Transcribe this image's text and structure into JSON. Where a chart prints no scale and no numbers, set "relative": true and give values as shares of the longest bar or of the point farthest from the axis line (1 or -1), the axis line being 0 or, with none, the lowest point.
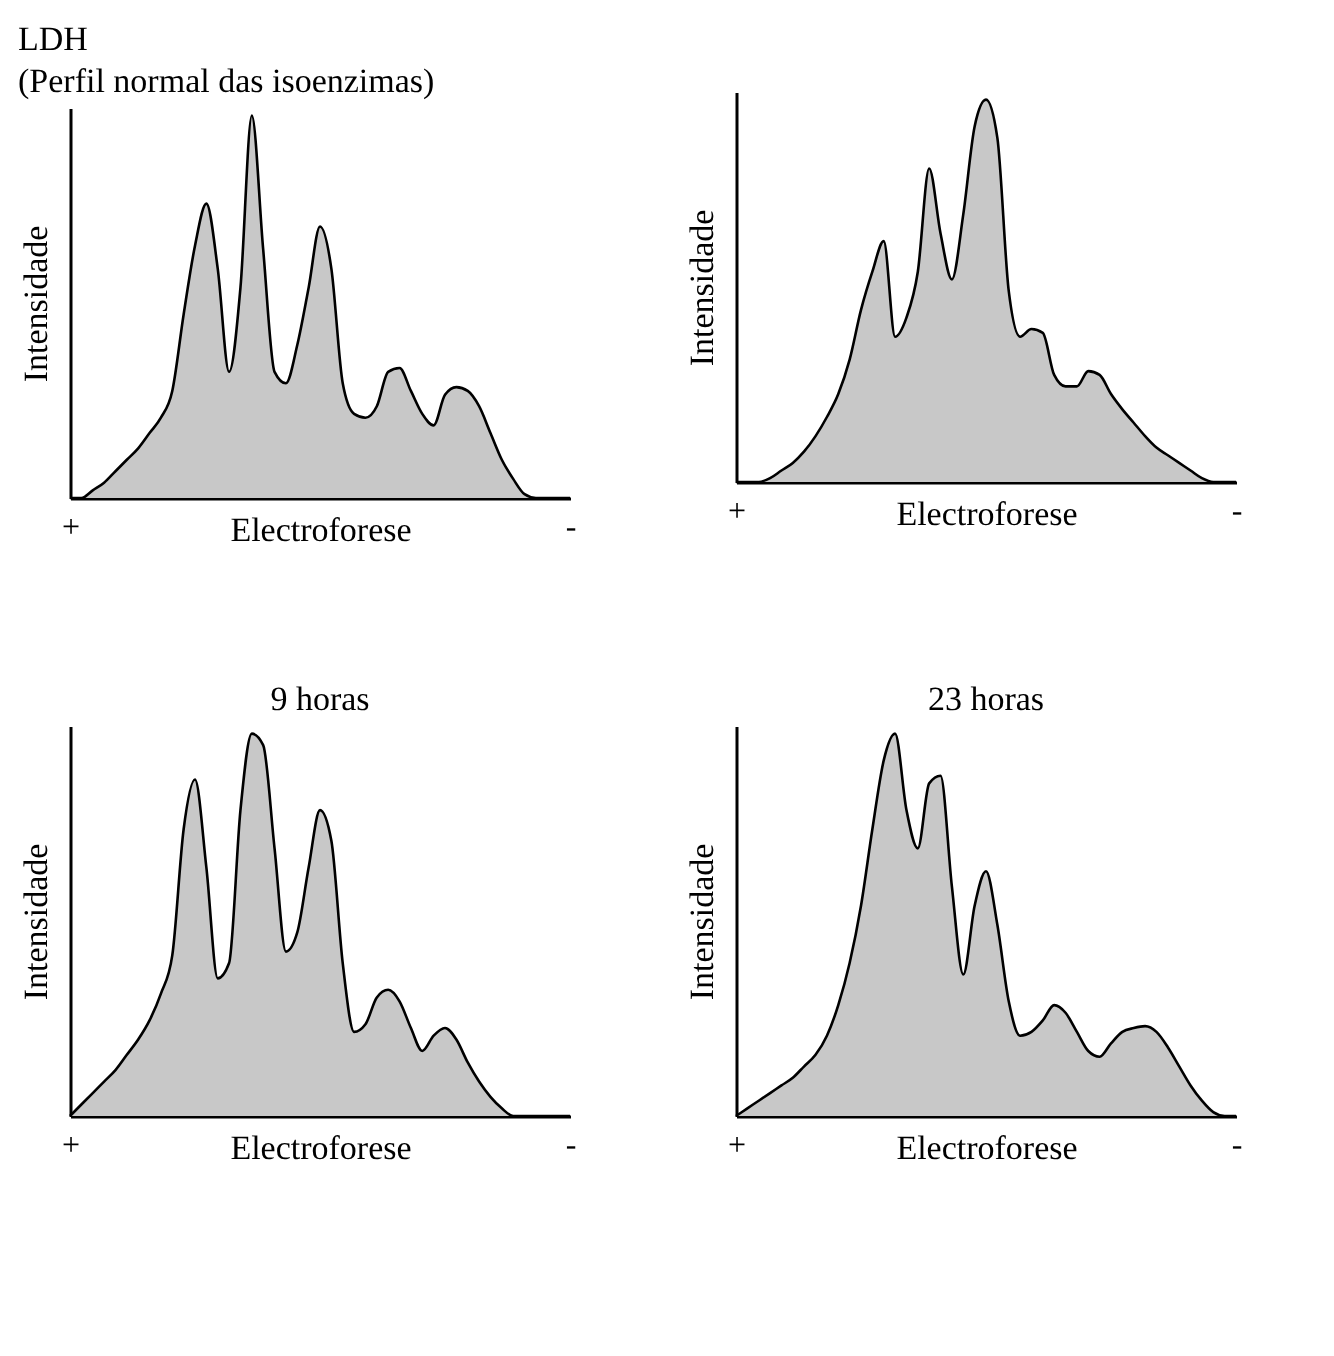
{
  "chart_data": [
    {
      "type": "area",
      "title": "LDH",
      "subtitle": "(Perfil normal das isoenzimas)",
      "xlabel": "Electroforese",
      "ylabel": "Intensidade",
      "relative": true,
      "categories": [
        "+",
        null,
        null,
        null,
        null,
        null,
        null,
        null,
        null,
        null,
        null,
        null,
        null,
        null,
        null,
        null,
        null,
        null,
        null,
        null,
        null,
        null,
        null,
        null,
        null,
        null,
        null,
        null,
        null,
        null,
        null,
        null,
        null,
        null,
        null,
        null,
        null,
        null,
        null,
        null,
        null,
        null,
        null,
        null,
        "-"
      ],
      "series": [
        {
          "color": "#c8c8c8",
          "values": [
            0,
            0,
            0.02,
            0.04,
            0.07,
            0.1,
            0.13,
            0.17,
            0.21,
            0.28,
            0.48,
            0.66,
            0.77,
            0.6,
            0.33,
            0.55,
            1,
            0.65,
            0.33,
            0.3,
            0.4,
            0.55,
            0.71,
            0.6,
            0.3,
            0.22,
            0.21,
            0.24,
            0.33,
            0.34,
            0.28,
            0.22,
            0.19,
            0.27,
            0.29,
            0.28,
            0.24,
            0.17,
            0.1,
            0.05,
            0.01,
            0,
            0,
            0,
            0
          ]
        }
      ]
    },
    {
      "type": "area",
      "xlabel": "Electroforese",
      "ylabel": "Intensidade",
      "relative": true,
      "categories": [
        "+",
        null,
        null,
        null,
        null,
        null,
        null,
        null,
        null,
        null,
        null,
        null,
        null,
        null,
        null,
        null,
        null,
        null,
        null,
        null,
        null,
        null,
        null,
        null,
        null,
        null,
        null,
        null,
        null,
        null,
        null,
        null,
        null,
        null,
        null,
        null,
        null,
        null,
        null,
        null,
        null,
        null,
        null,
        null,
        "-"
      ],
      "series": [
        {
          "color": "#c8c8c8",
          "values": [
            0,
            0,
            0,
            0.01,
            0.03,
            0.05,
            0.08,
            0.12,
            0.17,
            0.23,
            0.32,
            0.45,
            0.55,
            0.63,
            0.38,
            0.43,
            0.55,
            0.82,
            0.65,
            0.53,
            0.7,
            0.93,
            1,
            0.9,
            0.5,
            0.38,
            0.4,
            0.39,
            0.28,
            0.25,
            0.25,
            0.29,
            0.28,
            0.23,
            0.19,
            0.155,
            0.12,
            0.09,
            0.07,
            0.05,
            0.03,
            0.01,
            0,
            0,
            0
          ]
        }
      ]
    },
    {
      "type": "area",
      "title": "9 horas",
      "xlabel": "Electroforese",
      "ylabel": "Intensidade",
      "relative": true,
      "categories": [
        "+",
        null,
        null,
        null,
        null,
        null,
        null,
        null,
        null,
        null,
        null,
        null,
        null,
        null,
        null,
        null,
        null,
        null,
        null,
        null,
        null,
        null,
        null,
        null,
        null,
        null,
        null,
        null,
        null,
        null,
        null,
        null,
        null,
        null,
        null,
        null,
        null,
        null,
        null,
        null,
        null,
        null,
        null,
        null,
        "-"
      ],
      "series": [
        {
          "color": "#c8c8c8",
          "values": [
            0,
            0.03,
            0.06,
            0.09,
            0.12,
            0.16,
            0.2,
            0.25,
            0.32,
            0.42,
            0.75,
            0.88,
            0.65,
            0.36,
            0.4,
            0.8,
            1,
            0.97,
            0.7,
            0.43,
            0.48,
            0.65,
            0.8,
            0.72,
            0.4,
            0.22,
            0.24,
            0.31,
            0.33,
            0.3,
            0.23,
            0.17,
            0.21,
            0.23,
            0.2,
            0.14,
            0.09,
            0.05,
            0.02,
            0,
            0,
            0,
            0,
            0,
            0
          ]
        }
      ]
    },
    {
      "type": "area",
      "title": "23 horas",
      "xlabel": "Electroforese",
      "ylabel": "Intensidade",
      "relative": true,
      "categories": [
        "+",
        null,
        null,
        null,
        null,
        null,
        null,
        null,
        null,
        null,
        null,
        null,
        null,
        null,
        null,
        null,
        null,
        null,
        null,
        null,
        null,
        null,
        null,
        null,
        null,
        null,
        null,
        null,
        null,
        null,
        null,
        null,
        null,
        null,
        null,
        null,
        null,
        null,
        null,
        null,
        null,
        null,
        null,
        null,
        "-"
      ],
      "series": [
        {
          "color": "#c8c8c8",
          "values": [
            0,
            0.02,
            0.04,
            0.06,
            0.08,
            0.1,
            0.13,
            0.16,
            0.21,
            0.29,
            0.4,
            0.55,
            0.75,
            0.93,
            1,
            0.8,
            0.7,
            0.87,
            0.89,
            0.6,
            0.37,
            0.55,
            0.64,
            0.5,
            0.3,
            0.21,
            0.22,
            0.25,
            0.29,
            0.27,
            0.22,
            0.17,
            0.155,
            0.19,
            0.22,
            0.23,
            0.235,
            0.22,
            0.18,
            0.13,
            0.08,
            0.04,
            0.01,
            0,
            0
          ]
        }
      ]
    }
  ]
}
